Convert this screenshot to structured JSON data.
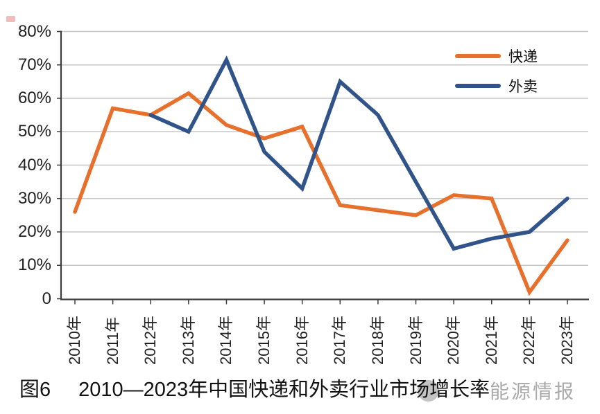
{
  "chart_data": {
    "type": "line",
    "title": "图6　2010—2023年中国快递和外卖行业市场增长率",
    "categories": [
      "2010年",
      "2011年",
      "2012年",
      "2013年",
      "2014年",
      "2015年",
      "2016年",
      "2017年",
      "2018年",
      "2019年",
      "2020年",
      "2021年",
      "2022年",
      "2023年"
    ],
    "series": [
      {
        "name": "快递",
        "color": "#E7702D",
        "values": [
          26,
          57,
          55,
          61.5,
          52,
          48,
          51.5,
          28,
          26.5,
          25,
          31,
          30,
          2,
          17.5
        ]
      },
      {
        "name": "外卖",
        "color": "#305389",
        "values": [
          null,
          null,
          55,
          50,
          71.5,
          44,
          33,
          65,
          55,
          35,
          15,
          18,
          20,
          30
        ]
      }
    ],
    "xlabel": "",
    "ylabel": "",
    "ylim": [
      0,
      80
    ],
    "ytick_step": 10,
    "ytick_labels": [
      "0",
      "10%",
      "20%",
      "30%",
      "40%",
      "50%",
      "60%",
      "70%",
      "80%"
    ],
    "grid": true,
    "legend_position": "top-right",
    "colors": {
      "gridline": "#c6c6c6",
      "axis": "#3d3d3d",
      "tick_label": "#222222"
    }
  },
  "legend": {
    "items": [
      {
        "label": "快递"
      },
      {
        "label": "外卖"
      }
    ]
  },
  "caption": {
    "figure_label": "图6",
    "text": "2010—2023年中国快递和外卖行业市场增长率"
  },
  "watermark": {
    "icon": "circle-logo",
    "text": "能源情报"
  }
}
